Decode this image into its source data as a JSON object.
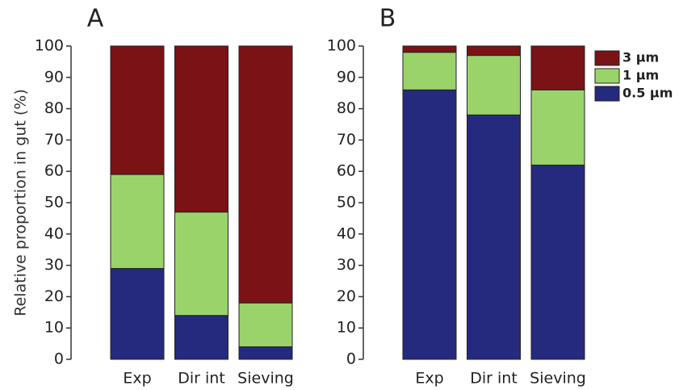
{
  "chart_data": [
    {
      "type": "bar",
      "stacked": true,
      "title": "A",
      "y_label": "Relative proportion in gut (%)",
      "categories": [
        "Exp",
        "Dir int",
        "Sieving"
      ],
      "series": [
        {
          "color": "#252a7e",
          "values": [
            29,
            14,
            4
          ]
        },
        {
          "color": "#9bd36b",
          "values": [
            30,
            33,
            14
          ]
        },
        {
          "color": "#7b1216",
          "values": [
            41,
            53,
            82
          ]
        }
      ],
      "ylim": [
        0,
        100
      ],
      "yticks": [
        0,
        10,
        20,
        30,
        40,
        50,
        60,
        70,
        80,
        90,
        100
      ]
    },
    {
      "type": "bar",
      "stacked": true,
      "title": "B",
      "categories": [
        "Exp",
        "Dir int",
        "Sieving"
      ],
      "series": [
        {
          "name": "0.5 µm",
          "color": "#252a7e",
          "values": [
            86,
            78,
            62
          ]
        },
        {
          "name": "1 µm",
          "color": "#9bd36b",
          "values": [
            12,
            19,
            24
          ]
        },
        {
          "name": "3 µm",
          "color": "#7b1216",
          "values": [
            2,
            3,
            14
          ]
        }
      ],
      "ylim": [
        0,
        100
      ],
      "yticks": [
        0,
        10,
        20,
        30,
        40,
        50,
        60,
        70,
        80,
        90,
        100
      ]
    }
  ]
}
